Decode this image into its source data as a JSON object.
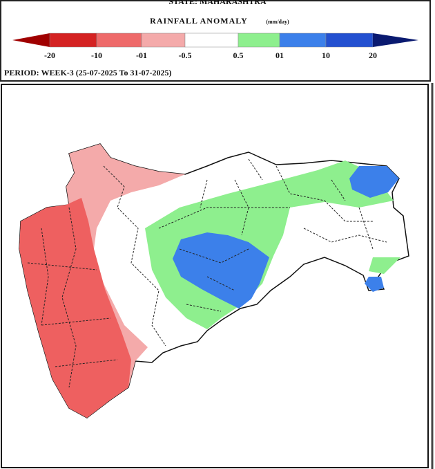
{
  "header": {
    "state": "STATE: MAHARASHTRA",
    "title": "RAINFALL ANOMALY",
    "unit": "(mm/day)"
  },
  "legend": {
    "labels": [
      "-20",
      "-10",
      "-01",
      "-0.5",
      "0.5",
      "01",
      "10",
      "20"
    ],
    "colors": [
      "#a00000",
      "#d42222",
      "#ee6a6a",
      "#f4aaaa",
      "#ffffff",
      "#8eef8e",
      "#3c80ea",
      "#2350d0",
      "#0a1a70"
    ]
  },
  "period": "PERIOD: WEEK-3 (25-07-2025 To 31-07-2025)"
}
